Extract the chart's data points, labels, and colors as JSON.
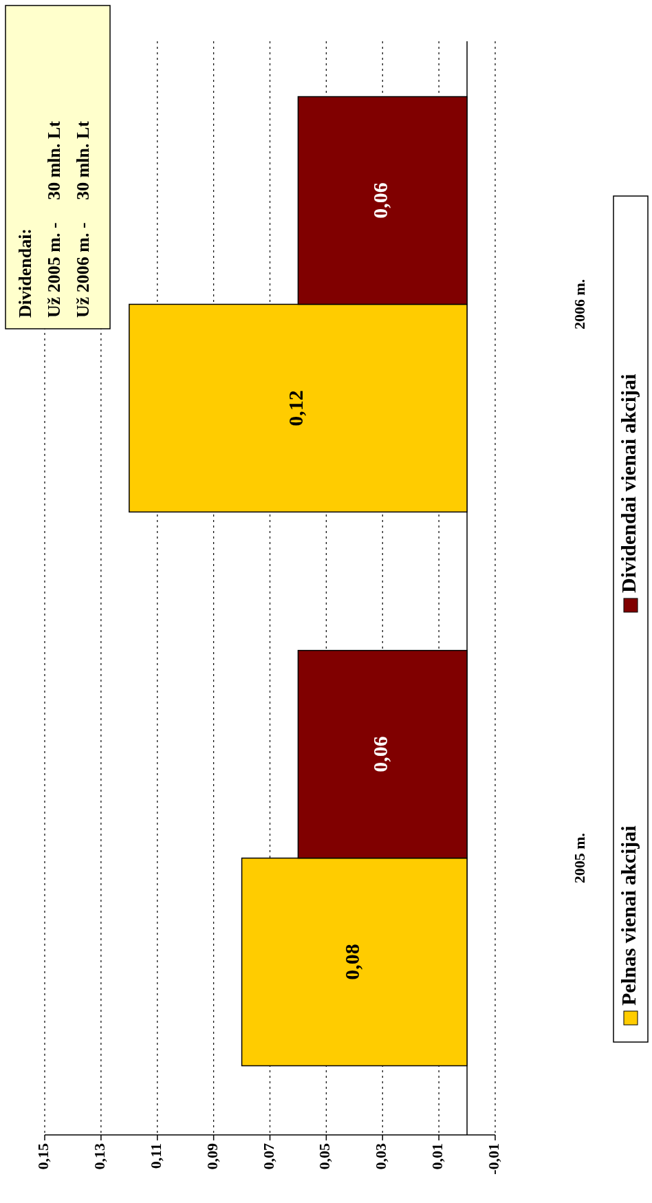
{
  "chart_data": {
    "type": "bar",
    "orientation": "horizontal",
    "categories": [
      "2006 m.",
      "2005 m."
    ],
    "series": [
      {
        "name": "Pelnas vienai akcijai",
        "color": "#ffcc00",
        "values": [
          0.12,
          0.08
        ],
        "value_labels": [
          "0,12",
          "0,08"
        ]
      },
      {
        "name": "Dividendai vienai akcijai",
        "color": "#800000",
        "values": [
          0.06,
          0.06
        ],
        "value_labels": [
          "0,06",
          "0,06"
        ]
      }
    ],
    "xlim": [
      0.15,
      -0.01
    ],
    "xticks": [
      {
        "value": 0.15,
        "label": "0,15"
      },
      {
        "value": 0.13,
        "label": "0,13"
      },
      {
        "value": 0.11,
        "label": "0,11"
      },
      {
        "value": 0.09,
        "label": "0,09"
      },
      {
        "value": 0.07,
        "label": "0,07"
      },
      {
        "value": 0.05,
        "label": "0,05"
      },
      {
        "value": 0.03,
        "label": "0,03"
      },
      {
        "value": 0.01,
        "label": "0,01"
      },
      {
        "value": -0.01,
        "label": "-0,01"
      }
    ],
    "grid": "x",
    "legend": "right",
    "annotations": [
      "Dividendai:",
      "Už 2005 m. -     30 mln. Lt",
      "Už 2006 m. -     30 mln. Lt"
    ]
  }
}
